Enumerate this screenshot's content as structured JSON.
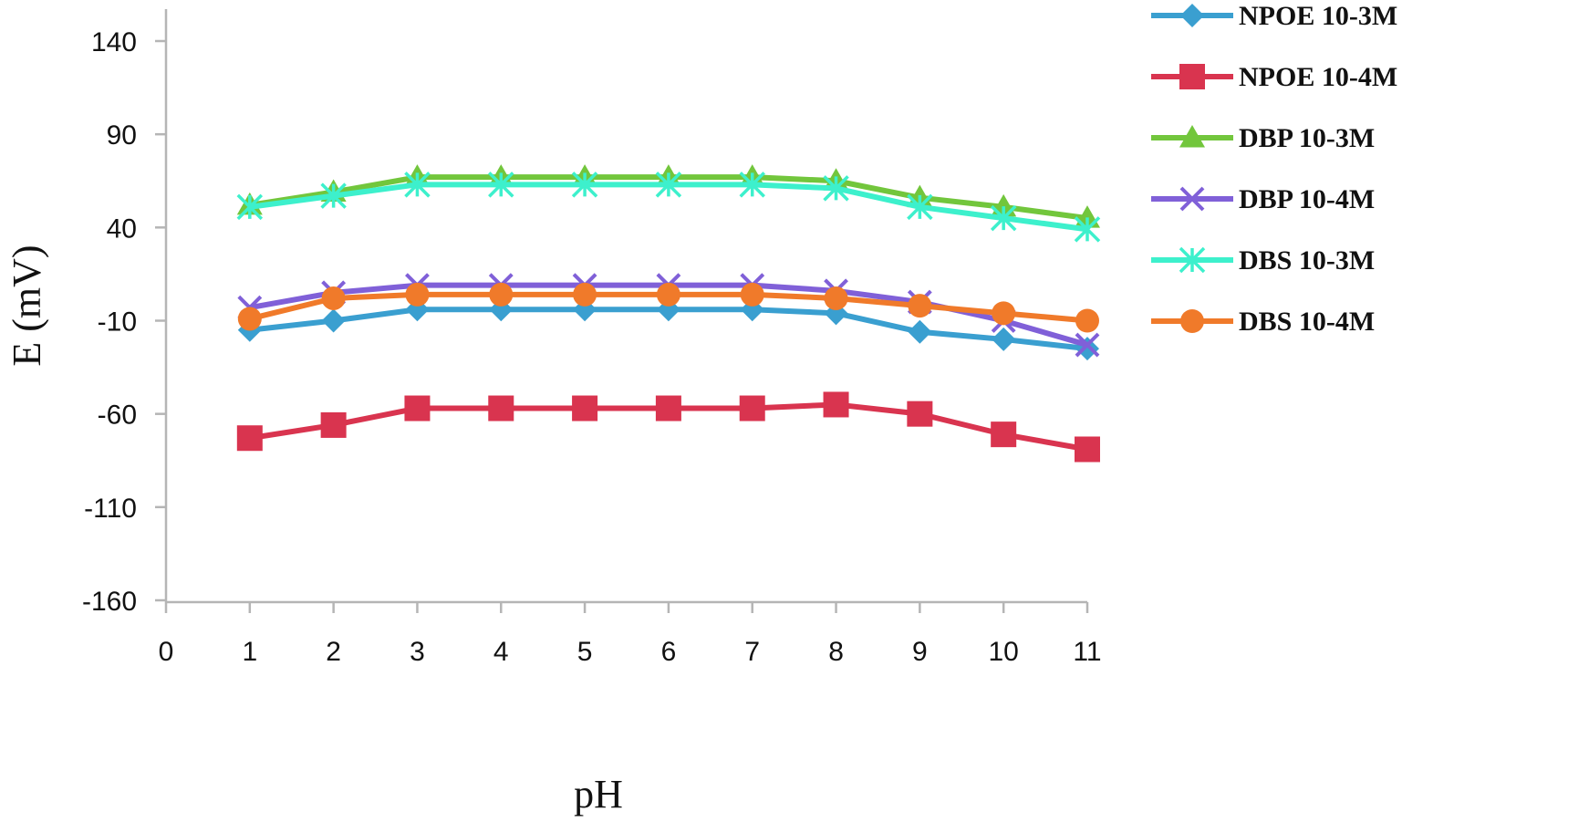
{
  "chart_data": {
    "type": "line",
    "title": "",
    "xlabel": "pH",
    "ylabel": "E (mV)",
    "xlim": [
      0,
      11
    ],
    "ylim": [
      -160,
      140
    ],
    "x_ticks": [
      0,
      1,
      2,
      3,
      4,
      5,
      6,
      7,
      8,
      9,
      10,
      11
    ],
    "y_ticks": [
      140,
      90,
      40,
      -10,
      -60,
      -110,
      -160
    ],
    "grid": false,
    "legend_position": "right",
    "x": [
      1,
      2,
      3,
      4,
      5,
      6,
      7,
      8,
      9,
      10,
      11
    ],
    "series": [
      {
        "name": "NPOE 10-3M",
        "color": "#3a9fd0",
        "marker": "diamond",
        "values": [
          -15,
          -10,
          -4,
          -4,
          -4,
          -4,
          -4,
          -6,
          -16,
          -20,
          -25
        ]
      },
      {
        "name": "NPOE 10-4M",
        "color": "#d9344f",
        "marker": "square",
        "values": [
          -73,
          -66,
          -57,
          -57,
          -57,
          -57,
          -57,
          -55,
          -60,
          -71,
          -79
        ]
      },
      {
        "name": "DBP 10-3M",
        "color": "#72c63c",
        "marker": "triangle",
        "values": [
          52,
          59,
          67,
          67,
          67,
          67,
          67,
          65,
          56,
          51,
          45
        ]
      },
      {
        "name": "DBP 10-4M",
        "color": "#8060d8",
        "marker": "x",
        "values": [
          -3,
          5,
          9,
          9,
          9,
          9,
          9,
          6,
          0,
          -10,
          -23
        ]
      },
      {
        "name": "DBS 10-3M",
        "color": "#3df0cc",
        "marker": "star",
        "values": [
          51,
          57,
          63,
          63,
          63,
          63,
          63,
          61,
          51,
          45,
          39
        ]
      },
      {
        "name": "DBS 10-4M",
        "color": "#f07a2a",
        "marker": "circle",
        "values": [
          -9,
          2,
          4,
          4,
          4,
          4,
          4,
          2,
          -2,
          -6,
          -10
        ]
      }
    ]
  }
}
